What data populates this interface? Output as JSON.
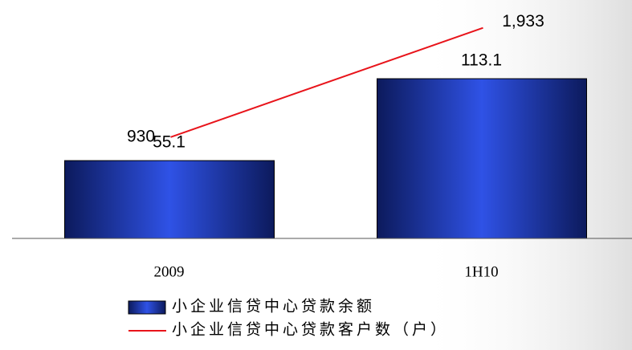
{
  "chart_data": {
    "type": "bar",
    "categories": [
      "2009",
      "1H10"
    ],
    "series": [
      {
        "name": "小企业信贷中心贷款余额",
        "type": "bar",
        "color": "#2a45c8",
        "values": [
          55.1,
          113.1
        ]
      },
      {
        "name": "小企业信贷中心贷款客户数（户）",
        "type": "line",
        "axis": "y2",
        "color": "#e8141b",
        "values": [
          930,
          1933
        ],
        "value_labels": [
          "930",
          "1,933"
        ]
      }
    ],
    "ylim": [
      0,
      162
    ],
    "y2lim": [
      0,
      2100
    ]
  }
}
